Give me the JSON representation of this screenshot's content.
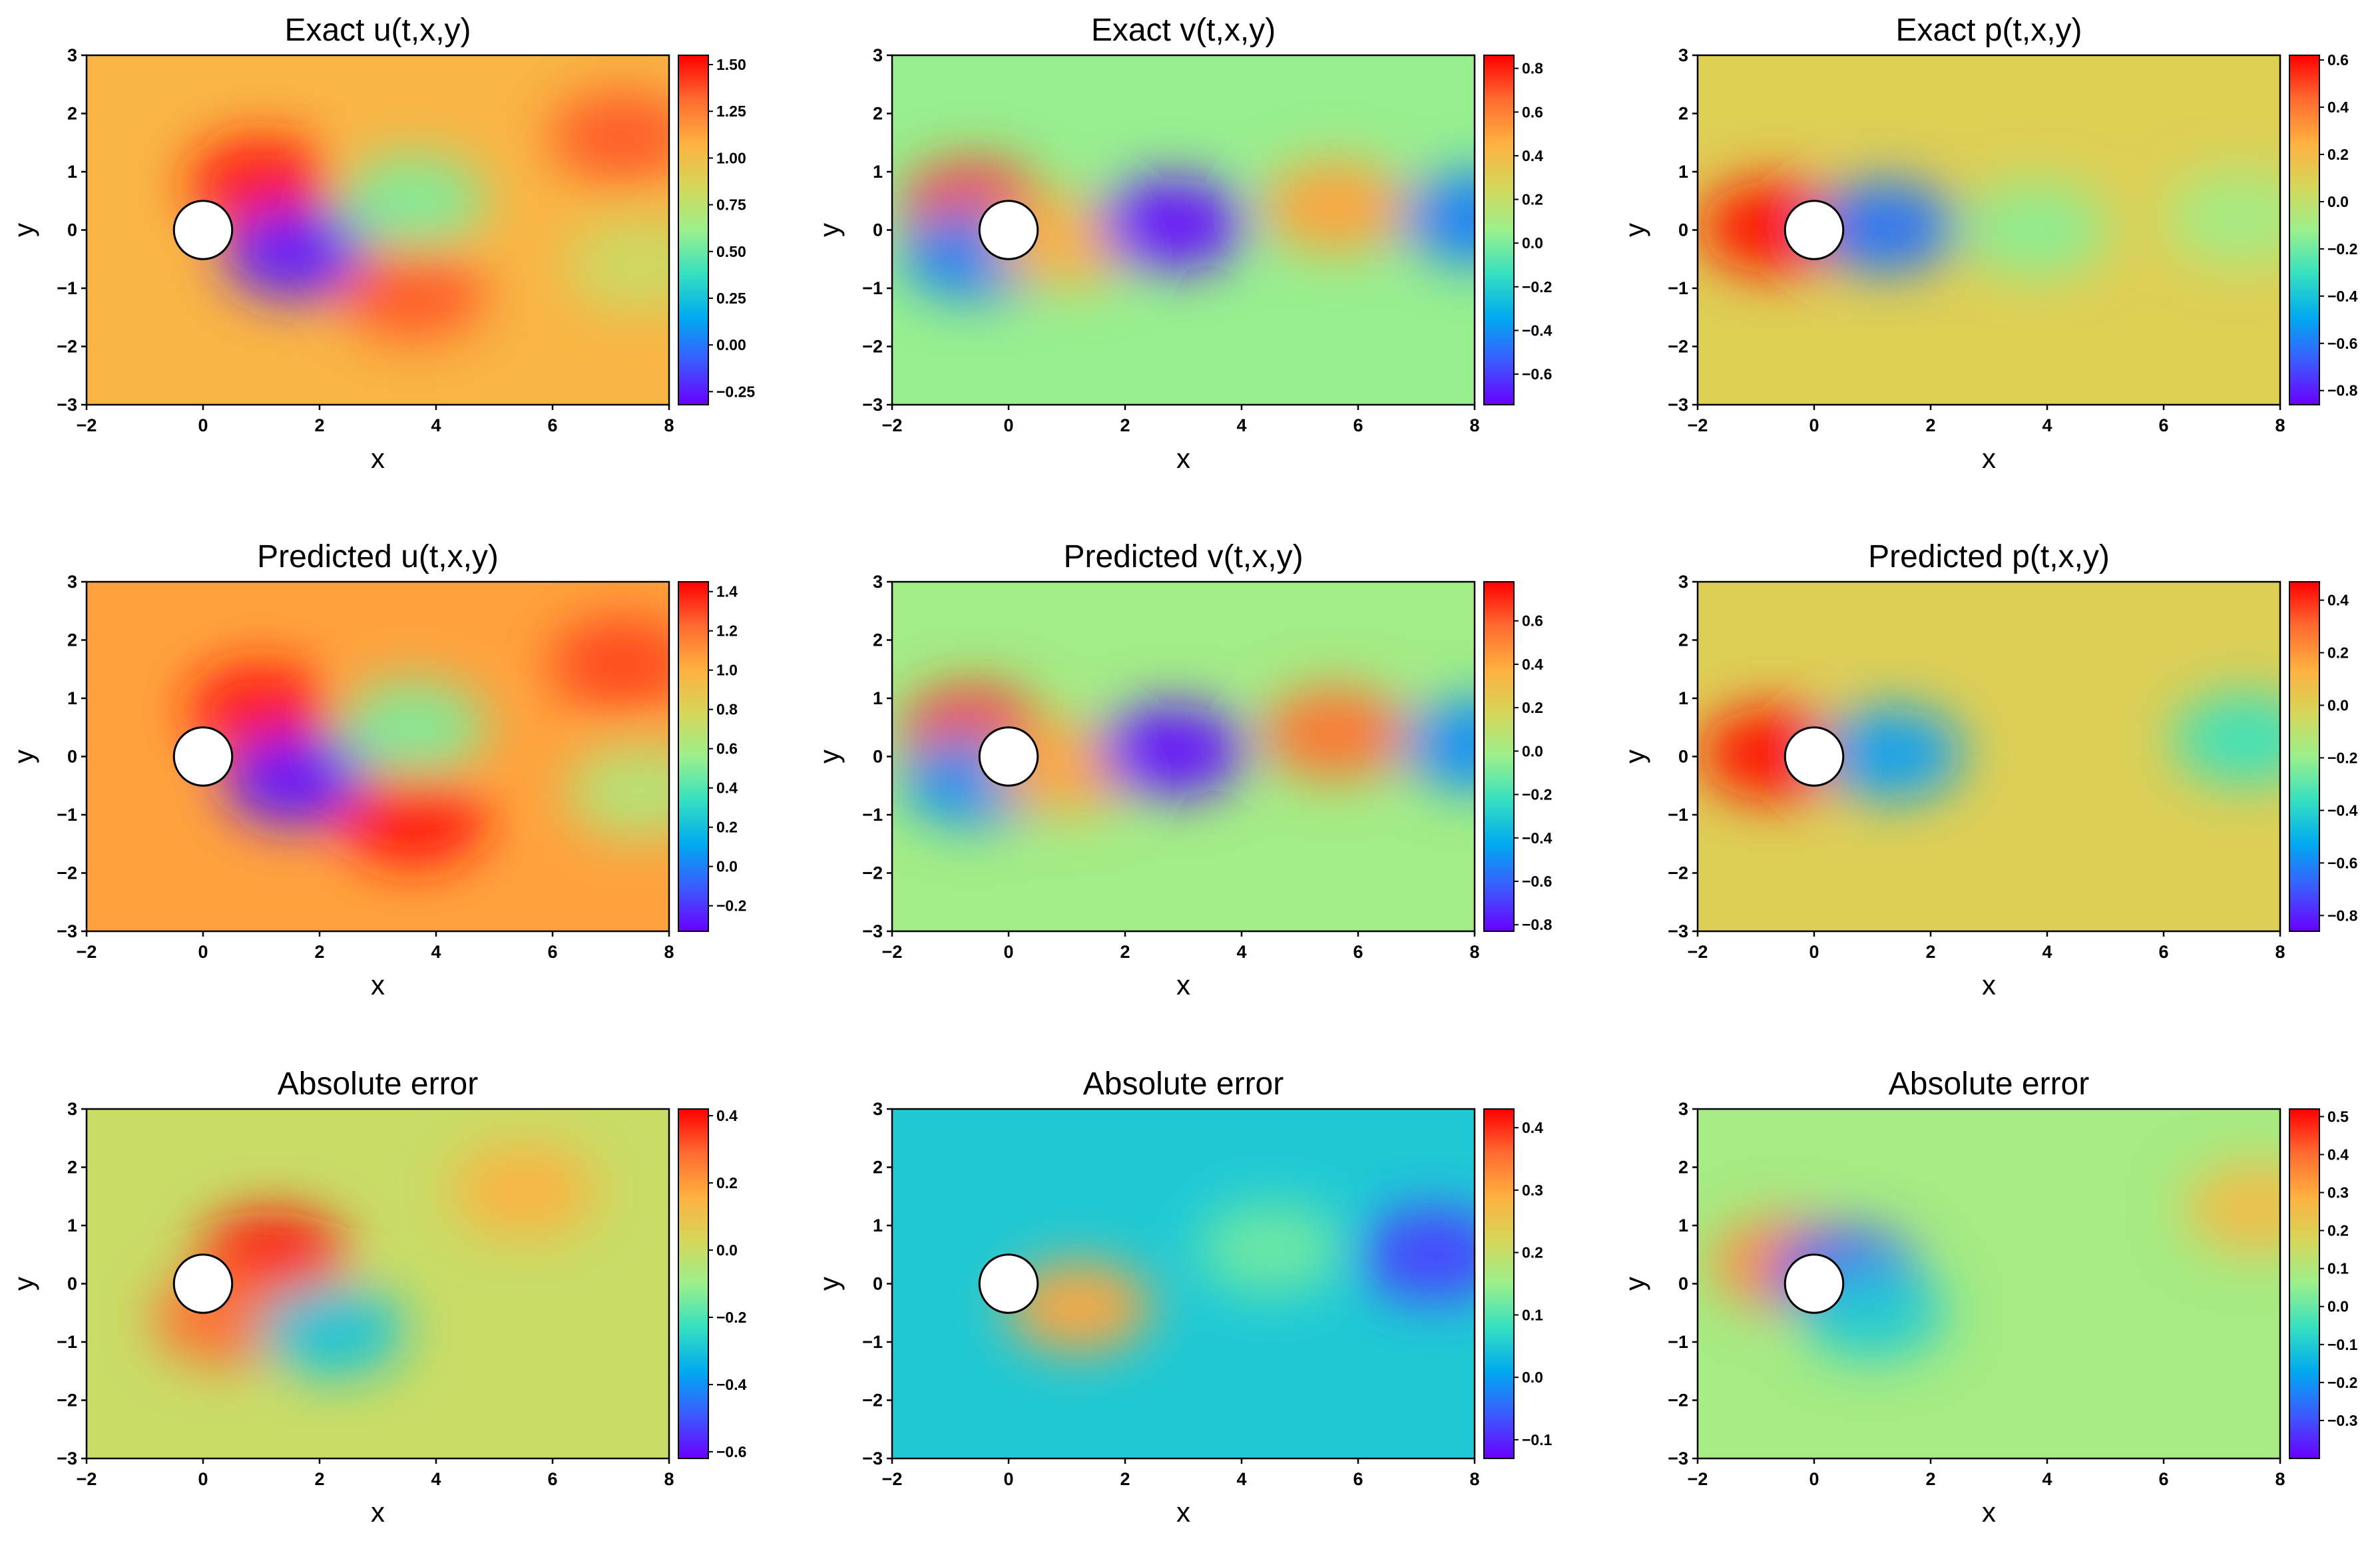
{
  "figure": {
    "description_free": true,
    "rows": 3,
    "cols": 3
  },
  "colormap": [
    "#6a00ff",
    "#3b5bff",
    "#00aaf0",
    "#36e0c0",
    "#9cf08c",
    "#d6d65a",
    "#ffb040",
    "#ff6a30",
    "#ff0000"
  ],
  "chart_data": [
    {
      "type": "heatmap",
      "title": "Exact u(t,x,y)",
      "xlabel": "x",
      "ylabel": "y",
      "xlim": [
        -2,
        8
      ],
      "ylim": [
        -3,
        3
      ],
      "xticks": [
        "−2",
        "0",
        "2",
        "4",
        "6",
        "8"
      ],
      "yticks": [
        "−3",
        "−2",
        "−1",
        "0",
        "1",
        "2",
        "3"
      ],
      "background_value": 1.05,
      "cylinder": {
        "center": [
          0,
          0
        ],
        "radius": 0.5
      },
      "colorbar": {
        "range": [
          -0.32,
          1.55
        ],
        "ticks": [
          "−0.25",
          "0.00",
          "0.25",
          "0.50",
          "0.75",
          "1.00",
          "1.25",
          "1.50"
        ],
        "tick_values": [
          -0.25,
          0,
          0.25,
          0.5,
          0.75,
          1.0,
          1.25,
          1.5
        ]
      },
      "features": [
        {
          "label": "high-speed region above cylinder",
          "x": 1.0,
          "y": 0.8,
          "value": 1.5
        },
        {
          "label": "wake deficit",
          "x": 1.6,
          "y": -0.4,
          "value": -0.25
        },
        {
          "label": "wake shear arm",
          "x": 3.6,
          "y": 0.5,
          "value": 0.55
        },
        {
          "label": "lower lobe",
          "x": 3.6,
          "y": -1.1,
          "value": 1.35
        },
        {
          "label": "upper right lobe",
          "x": 7.2,
          "y": 1.6,
          "value": 1.35
        },
        {
          "label": "far wake",
          "x": 7.5,
          "y": -0.6,
          "value": 0.8
        }
      ]
    },
    {
      "type": "heatmap",
      "title": "Exact v(t,x,y)",
      "xlabel": "x",
      "ylabel": "y",
      "xlim": [
        -2,
        8
      ],
      "ylim": [
        -3,
        3
      ],
      "xticks": [
        "−2",
        "0",
        "2",
        "4",
        "6",
        "8"
      ],
      "yticks": [
        "−3",
        "−2",
        "−1",
        "0",
        "1",
        "2",
        "3"
      ],
      "background_value": 0.05,
      "cylinder": {
        "center": [
          0,
          0
        ],
        "radius": 0.5
      },
      "colorbar": {
        "range": [
          -0.74,
          0.86
        ],
        "ticks": [
          "−0.6",
          "−0.4",
          "−0.2",
          "0.0",
          "0.2",
          "0.4",
          "0.6",
          "0.8"
        ],
        "tick_values": [
          -0.6,
          -0.4,
          -0.2,
          0.0,
          0.2,
          0.4,
          0.6,
          0.8
        ]
      },
      "features": [
        {
          "label": "upstream upper",
          "x": -0.6,
          "y": 0.4,
          "value": 0.75
        },
        {
          "label": "upstream lower",
          "x": -0.6,
          "y": -0.4,
          "value": -0.45
        },
        {
          "label": "near wake",
          "x": 1.0,
          "y": -0.2,
          "value": 0.45
        },
        {
          "label": "negative vortex",
          "x": 2.8,
          "y": 0.1,
          "value": -0.72
        },
        {
          "label": "positive vortex",
          "x": 5.6,
          "y": 0.4,
          "value": 0.5
        },
        {
          "label": "far right negative",
          "x": 8.0,
          "y": 0.2,
          "value": -0.45
        }
      ]
    },
    {
      "type": "heatmap",
      "title": "Exact p(t,x,y)",
      "xlabel": "x",
      "ylabel": "y",
      "xlim": [
        -2,
        8
      ],
      "ylim": [
        -3,
        3
      ],
      "xticks": [
        "−2",
        "0",
        "2",
        "4",
        "6",
        "8"
      ],
      "yticks": [
        "−3",
        "−2",
        "−1",
        "0",
        "1",
        "2",
        "3"
      ],
      "background_value": 0.1,
      "cylinder": {
        "center": [
          0,
          0
        ],
        "radius": 0.5
      },
      "colorbar": {
        "range": [
          -0.86,
          0.62
        ],
        "ticks": [
          "−0.8",
          "−0.6",
          "−0.4",
          "−0.2",
          "0.0",
          "0.2",
          "0.4",
          "0.6"
        ],
        "tick_values": [
          -0.8,
          -0.6,
          -0.4,
          -0.2,
          0.0,
          0.2,
          0.4,
          0.6
        ]
      },
      "features": [
        {
          "label": "stagnation pressure",
          "x": -0.7,
          "y": 0.05,
          "value": 0.6
        },
        {
          "label": "low pressure wake",
          "x": 1.2,
          "y": 0.05,
          "value": -0.62
        },
        {
          "label": "weak eddy",
          "x": 3.8,
          "y": 0.0,
          "value": -0.15
        },
        {
          "label": "weak far eddy",
          "x": 7.3,
          "y": 0.2,
          "value": -0.1
        }
      ]
    },
    {
      "type": "heatmap",
      "title": "Predicted u(t,x,y)",
      "xlabel": "x",
      "ylabel": "y",
      "xlim": [
        -2,
        8
      ],
      "ylim": [
        -3,
        3
      ],
      "xticks": [
        "−2",
        "0",
        "2",
        "4",
        "6",
        "8"
      ],
      "yticks": [
        "−3",
        "−2",
        "−1",
        "0",
        "1",
        "2",
        "3"
      ],
      "background_value": 1.05,
      "cylinder": {
        "center": [
          0,
          0
        ],
        "radius": 0.5
      },
      "colorbar": {
        "range": [
          -0.33,
          1.45
        ],
        "ticks": [
          "−0.2",
          "0.0",
          "0.2",
          "0.4",
          "0.6",
          "0.8",
          "1.0",
          "1.2",
          "1.4"
        ],
        "tick_values": [
          -0.2,
          0.0,
          0.2,
          0.4,
          0.6,
          0.8,
          1.0,
          1.2,
          1.4
        ]
      },
      "features": [
        {
          "label": "high-speed region above cylinder",
          "x": 1.0,
          "y": 0.8,
          "value": 1.4
        },
        {
          "label": "wake deficit",
          "x": 1.6,
          "y": -0.4,
          "value": -0.28
        },
        {
          "label": "wake shear arm",
          "x": 3.6,
          "y": 0.5,
          "value": 0.5
        },
        {
          "label": "lower lobe",
          "x": 3.6,
          "y": -1.1,
          "value": 1.4
        },
        {
          "label": "upper right lobe",
          "x": 7.2,
          "y": 1.6,
          "value": 1.3
        },
        {
          "label": "far wake",
          "x": 7.5,
          "y": -0.6,
          "value": 0.65
        }
      ]
    },
    {
      "type": "heatmap",
      "title": "Predicted v(t,x,y)",
      "xlabel": "x",
      "ylabel": "y",
      "xlim": [
        -2,
        8
      ],
      "ylim": [
        -3,
        3
      ],
      "xticks": [
        "−2",
        "0",
        "2",
        "4",
        "6",
        "8"
      ],
      "yticks": [
        "−3",
        "−2",
        "−1",
        "0",
        "1",
        "2",
        "3"
      ],
      "background_value": 0.0,
      "cylinder": {
        "center": [
          0,
          0
        ],
        "radius": 0.5
      },
      "colorbar": {
        "range": [
          -0.83,
          0.78
        ],
        "ticks": [
          "−0.8",
          "−0.6",
          "−0.4",
          "−0.2",
          "0.0",
          "0.2",
          "0.4",
          "0.6"
        ],
        "tick_values": [
          -0.8,
          -0.6,
          -0.4,
          -0.2,
          0.0,
          0.2,
          0.4,
          0.6
        ]
      },
      "features": [
        {
          "label": "upstream upper",
          "x": -0.6,
          "y": 0.4,
          "value": 0.7
        },
        {
          "label": "upstream lower",
          "x": -0.6,
          "y": -0.4,
          "value": -0.5
        },
        {
          "label": "near wake",
          "x": 1.0,
          "y": -0.2,
          "value": 0.4
        },
        {
          "label": "negative vortex",
          "x": 2.8,
          "y": 0.1,
          "value": -0.8
        },
        {
          "label": "positive vortex",
          "x": 5.6,
          "y": 0.4,
          "value": 0.55
        },
        {
          "label": "far right negative",
          "x": 8.0,
          "y": 0.2,
          "value": -0.5
        }
      ]
    },
    {
      "type": "heatmap",
      "title": "Predicted p(t,x,y)",
      "xlabel": "x",
      "ylabel": "y",
      "xlim": [
        -2,
        8
      ],
      "ylim": [
        -3,
        3
      ],
      "xticks": [
        "−2",
        "0",
        "2",
        "4",
        "6",
        "8"
      ],
      "yticks": [
        "−3",
        "−2",
        "−1",
        "0",
        "1",
        "2",
        "3"
      ],
      "background_value": 0.0,
      "cylinder": {
        "center": [
          0,
          0
        ],
        "radius": 0.5
      },
      "colorbar": {
        "range": [
          -0.86,
          0.47
        ],
        "ticks": [
          "−0.8",
          "−0.6",
          "−0.4",
          "−0.2",
          "0.0",
          "0.2",
          "0.4"
        ],
        "tick_values": [
          -0.8,
          -0.6,
          -0.4,
          -0.2,
          0.0,
          0.2,
          0.4
        ]
      },
      "features": [
        {
          "label": "stagnation pressure",
          "x": -0.7,
          "y": 0.05,
          "value": 0.45
        },
        {
          "label": "low pressure wake",
          "x": 1.3,
          "y": 0.05,
          "value": -0.55
        },
        {
          "label": "far eddy",
          "x": 7.4,
          "y": 0.3,
          "value": -0.35
        }
      ]
    },
    {
      "type": "heatmap",
      "title": "Absolute error",
      "xlabel": "x",
      "ylabel": "y",
      "xlim": [
        -2,
        8
      ],
      "ylim": [
        -3,
        3
      ],
      "xticks": [
        "−2",
        "0",
        "2",
        "4",
        "6",
        "8"
      ],
      "yticks": [
        "−3",
        "−2",
        "−1",
        "0",
        "1",
        "2",
        "3"
      ],
      "background_value": 0.0,
      "cylinder": {
        "center": [
          0,
          0
        ],
        "radius": 0.5
      },
      "colorbar": {
        "range": [
          -0.62,
          0.42
        ],
        "ticks": [
          "−0.6",
          "−0.4",
          "−0.2",
          "0.0",
          "0.2",
          "0.4"
        ],
        "tick_values": [
          -0.6,
          -0.4,
          -0.2,
          0.0,
          0.2,
          0.4
        ]
      },
      "features": [
        {
          "label": "upper shear error",
          "x": 1.2,
          "y": 0.45,
          "value": 0.4
        },
        {
          "label": "lower shear error",
          "x": 0.4,
          "y": -0.6,
          "value": 0.28
        },
        {
          "label": "wake error",
          "x": 2.2,
          "y": -0.8,
          "value": -0.3
        },
        {
          "label": "arm error",
          "x": 5.5,
          "y": 1.6,
          "value": 0.15
        }
      ]
    },
    {
      "type": "heatmap",
      "title": "Absolute error",
      "xlabel": "x",
      "ylabel": "y",
      "xlim": [
        -2,
        8
      ],
      "ylim": [
        -3,
        3
      ],
      "xticks": [
        "−2",
        "0",
        "2",
        "4",
        "6",
        "8"
      ],
      "yticks": [
        "−3",
        "−2",
        "−1",
        "0",
        "1",
        "2",
        "3"
      ],
      "background_value": 0.05,
      "cylinder": {
        "center": [
          0,
          0
        ],
        "radius": 0.5
      },
      "colorbar": {
        "range": [
          -0.13,
          0.43
        ],
        "ticks": [
          "−0.1",
          "0.0",
          "0.1",
          "0.2",
          "0.3",
          "0.4"
        ],
        "tick_values": [
          -0.1,
          0.0,
          0.1,
          0.2,
          0.3,
          0.4
        ]
      },
      "features": [
        {
          "label": "near wake error",
          "x": 1.2,
          "y": -0.4,
          "value": 0.3
        },
        {
          "label": "vortex edge error",
          "x": 4.5,
          "y": 0.6,
          "value": 0.12
        },
        {
          "label": "right band",
          "x": 7.3,
          "y": 0.5,
          "value": -0.08
        }
      ]
    },
    {
      "type": "heatmap",
      "title": "Absolute error",
      "xlabel": "x",
      "ylabel": "y",
      "xlim": [
        -2,
        8
      ],
      "ylim": [
        -3,
        3
      ],
      "xticks": [
        "−2",
        "0",
        "2",
        "4",
        "6",
        "8"
      ],
      "yticks": [
        "−3",
        "−2",
        "−1",
        "0",
        "1",
        "2",
        "3"
      ],
      "background_value": 0.08,
      "cylinder": {
        "center": [
          0,
          0
        ],
        "radius": 0.5
      },
      "colorbar": {
        "range": [
          -0.4,
          0.52
        ],
        "ticks": [
          "−0.3",
          "−0.2",
          "−0.1",
          "0.0",
          "0.1",
          "0.2",
          "0.3",
          "0.4",
          "0.5"
        ],
        "tick_values": [
          -0.3,
          -0.2,
          -0.1,
          0.0,
          0.1,
          0.2,
          0.3,
          0.4,
          0.5
        ]
      },
      "features": [
        {
          "label": "front edge error",
          "x": -0.5,
          "y": 0.35,
          "value": 0.35
        },
        {
          "label": "rear edge error",
          "x": 0.55,
          "y": 0.15,
          "value": -0.3
        },
        {
          "label": "wake error",
          "x": 1.0,
          "y": -0.5,
          "value": -0.1
        },
        {
          "label": "right edge error",
          "x": 7.6,
          "y": 1.3,
          "value": 0.25
        }
      ]
    }
  ]
}
